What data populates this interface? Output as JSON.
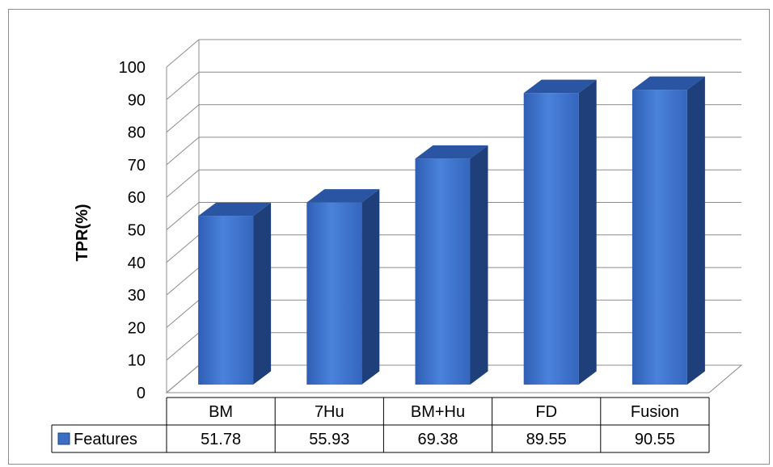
{
  "chart_data": {
    "type": "bar",
    "style": "3d-column",
    "ylabel": "TPR(%)",
    "xlabel": "",
    "ylim": [
      0,
      100
    ],
    "ytick_step": 10,
    "grid": true,
    "categories": [
      "BM",
      "7Hu",
      "BM+Hu",
      "FD",
      "Fusion"
    ],
    "series": [
      {
        "name": "Features",
        "values": [
          51.78,
          55.93,
          69.38,
          89.55,
          90.55
        ]
      }
    ],
    "data_table": true,
    "colors": {
      "bar_front": "#3b6fc4",
      "bar_front_light": "#4f86dd",
      "bar_side": "#1f3f7a",
      "bar_top": "#2a55a3",
      "grid": "#8c8c8c",
      "legend_marker": "#3b6fc4"
    }
  }
}
